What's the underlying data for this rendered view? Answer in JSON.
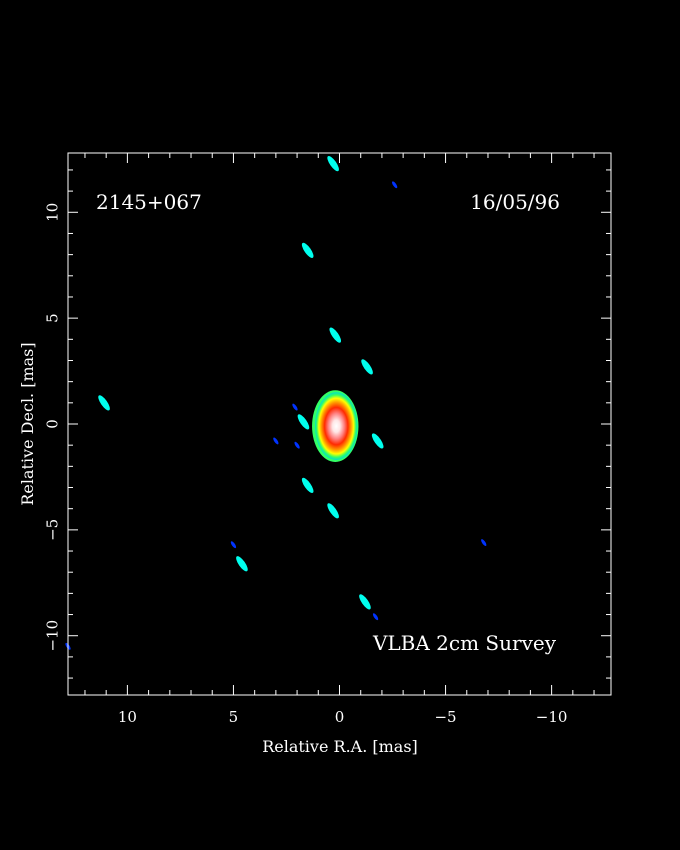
{
  "chart_data": {
    "type": "heatmap",
    "source_name": "2145+067",
    "date": "16/05/96",
    "survey_label": "VLBA 2cm Survey",
    "xlabel": "Relative R.A. [mas]",
    "ylabel": "Relative Decl. [mas]",
    "xlim": [
      12.8,
      -12.8
    ],
    "ylim": [
      -12.8,
      12.8
    ],
    "x_ticks": [
      {
        "value": 10,
        "label": "10"
      },
      {
        "value": 5,
        "label": "5"
      },
      {
        "value": 0,
        "label": "0"
      },
      {
        "value": -5,
        "label": "−5"
      },
      {
        "value": -10,
        "label": "−10"
      }
    ],
    "y_ticks": [
      {
        "value": 10,
        "label": "10"
      },
      {
        "value": 5,
        "label": "5"
      },
      {
        "value": 0,
        "label": "0"
      },
      {
        "value": -5,
        "label": "−5"
      },
      {
        "value": -10,
        "label": "−10"
      }
    ],
    "minor_tick_step": 1,
    "color_scale": [
      "#0033ff",
      "#00ffee",
      "#33ff66",
      "#ffff00",
      "#ff3300",
      "#ff9999",
      "#ffffff"
    ],
    "core": {
      "ra": 0.0,
      "dec": 0.0,
      "ra_extent": [
        -0.8,
        1.2
      ],
      "dec_extent": [
        -1.7,
        1.5
      ]
    },
    "components": [
      {
        "ra": 0.3,
        "dec": 12.3,
        "level": 1
      },
      {
        "ra": -2.6,
        "dec": 11.3,
        "level": 0
      },
      {
        "ra": 1.5,
        "dec": 8.2,
        "level": 1
      },
      {
        "ra": 0.2,
        "dec": 4.2,
        "level": 1
      },
      {
        "ra": -1.3,
        "dec": 2.7,
        "level": 1
      },
      {
        "ra": 11.1,
        "dec": 1.0,
        "level": 1
      },
      {
        "ra": 2.1,
        "dec": 0.8,
        "level": 0
      },
      {
        "ra": 1.7,
        "dec": 0.1,
        "level": 1
      },
      {
        "ra": 3.0,
        "dec": -0.8,
        "level": 0
      },
      {
        "ra": 2.0,
        "dec": -1.0,
        "level": 0
      },
      {
        "ra": -1.8,
        "dec": -0.8,
        "level": 1
      },
      {
        "ra": 1.5,
        "dec": -2.9,
        "level": 1
      },
      {
        "ra": 0.3,
        "dec": -4.1,
        "level": 1
      },
      {
        "ra": 5.0,
        "dec": -5.7,
        "level": 0
      },
      {
        "ra": 4.6,
        "dec": -6.6,
        "level": 1
      },
      {
        "ra": -1.2,
        "dec": -8.4,
        "level": 1
      },
      {
        "ra": -1.7,
        "dec": -9.1,
        "level": 0
      },
      {
        "ra": -6.8,
        "dec": -5.6,
        "level": 0
      },
      {
        "ra": 12.8,
        "dec": -10.5,
        "level": 0
      }
    ]
  }
}
